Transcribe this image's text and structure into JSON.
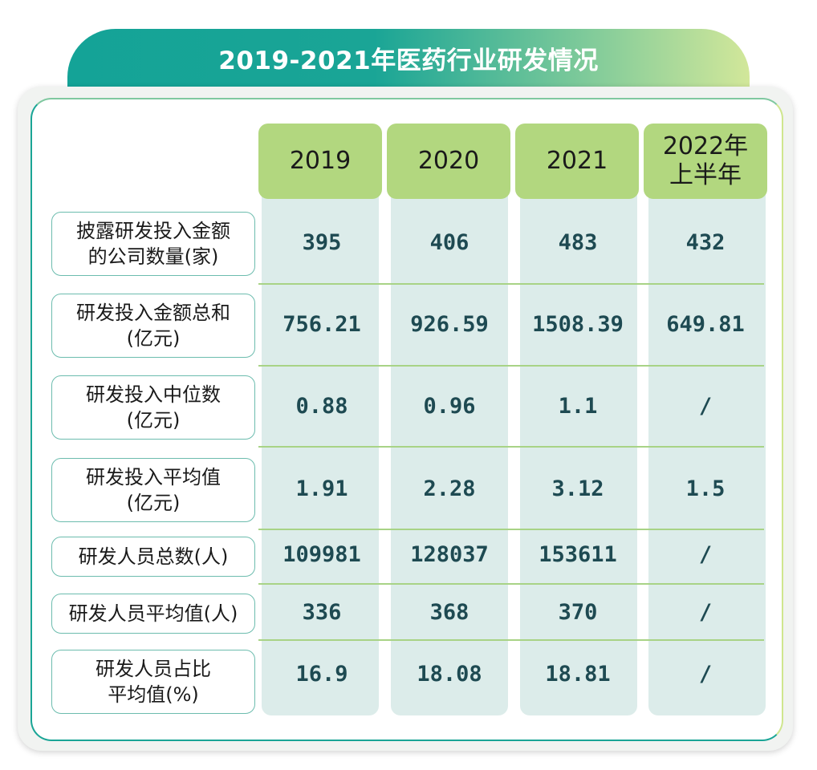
{
  "title": "2019-2021年医药行业研发情况",
  "years": [
    "2019",
    "2020",
    "2021",
    "2022年\n上半年"
  ],
  "rows": [
    {
      "label": "披露研发投入金额\n的公司数量(家)",
      "values": [
        "395",
        "406",
        "483",
        "432"
      ]
    },
    {
      "label": "研发投入金额总和\n(亿元)",
      "values": [
        "756.21",
        "926.59",
        "1508.39",
        "649.81"
      ]
    },
    {
      "label": "研发投入中位数\n(亿元)",
      "values": [
        "0.88",
        "0.96",
        "1.1",
        "/"
      ]
    },
    {
      "label": "研发投入平均值\n(亿元)",
      "values": [
        "1.91",
        "2.28",
        "3.12",
        "1.5"
      ]
    },
    {
      "label": "研发人员总数(人)",
      "values": [
        "109981",
        "128037",
        "153611",
        "/"
      ]
    },
    {
      "label": "研发人员平均值(人)",
      "values": [
        "336",
        "368",
        "370",
        "/"
      ]
    },
    {
      "label": "研发人员占比\n平均值(%)",
      "values": [
        "16.9",
        "18.08",
        "18.81",
        "/"
      ]
    }
  ],
  "colors": {
    "teal": "#1aa596",
    "header_green": "#b2d77f",
    "column_bg": "#dcecea",
    "value_text": "#1e4a52"
  }
}
